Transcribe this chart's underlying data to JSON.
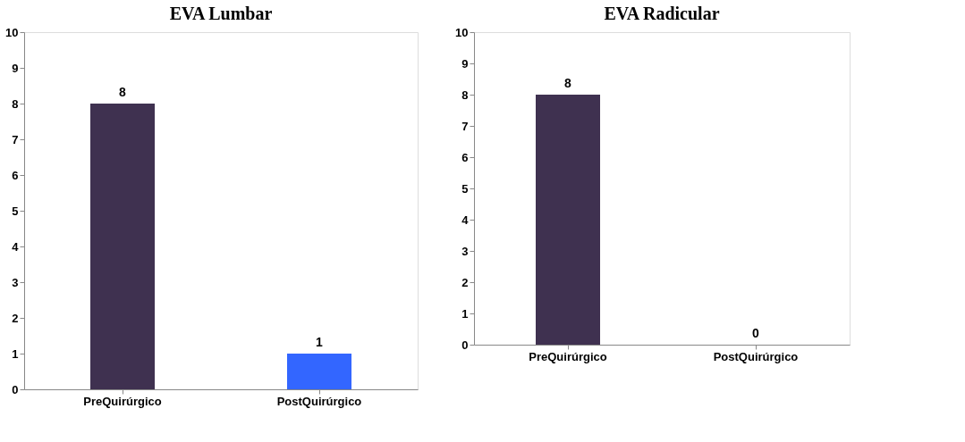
{
  "chart_data": [
    {
      "type": "bar",
      "title": "EVA Lumbar",
      "categories": [
        "PreQuirúrgico",
        "PostQuirúrgico"
      ],
      "values": [
        8,
        1
      ],
      "colors": [
        "#3f3150",
        "#3366ff"
      ],
      "ylim": [
        0,
        10
      ],
      "yticks": [
        0,
        1,
        2,
        3,
        4,
        5,
        6,
        7,
        8,
        9,
        10
      ],
      "grid": false,
      "data_labels": true
    },
    {
      "type": "bar",
      "title": "EVA Radicular",
      "categories": [
        "PreQuirúrgico",
        "PostQuirúrgico"
      ],
      "values": [
        8,
        0
      ],
      "colors": [
        "#3f3150",
        "#3366ff"
      ],
      "ylim": [
        0,
        10
      ],
      "yticks": [
        0,
        1,
        2,
        3,
        4,
        5,
        6,
        7,
        8,
        9,
        10
      ],
      "grid": false,
      "data_labels": true
    }
  ]
}
